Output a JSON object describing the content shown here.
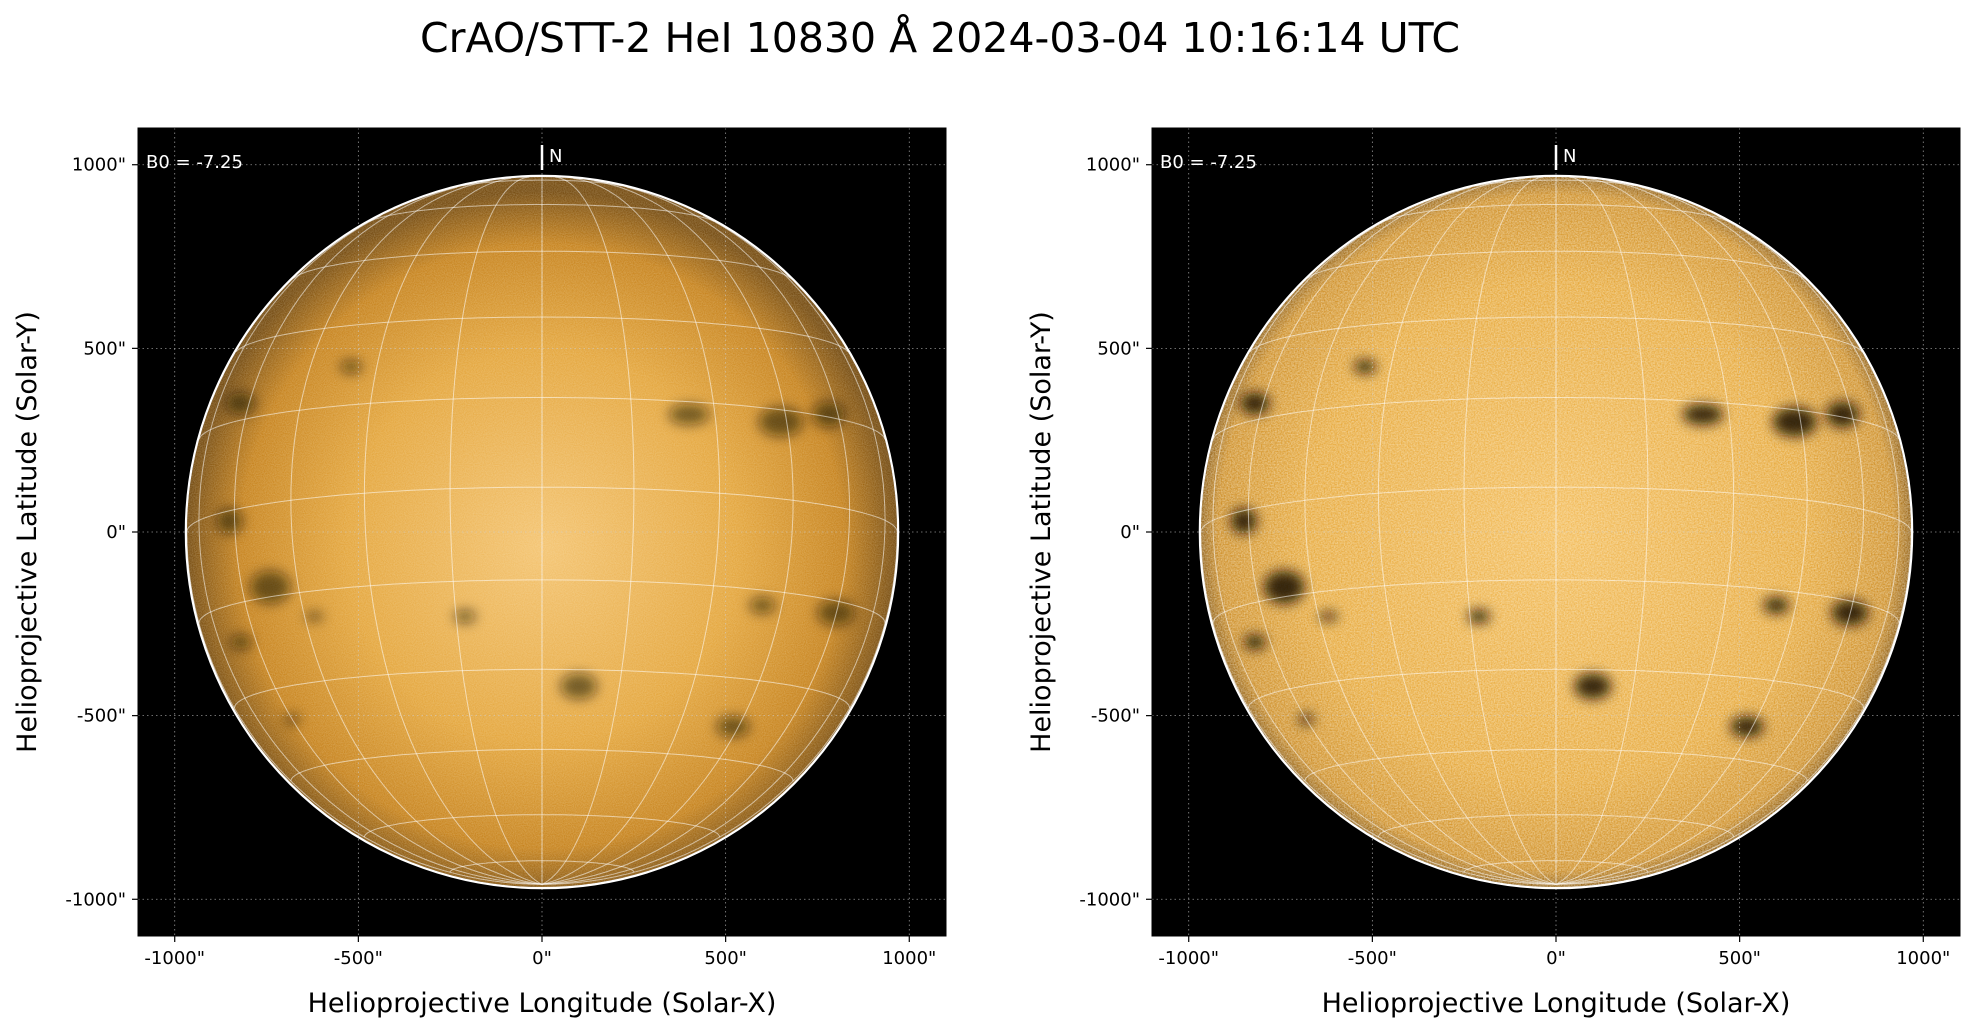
{
  "title": "CrAO/STT-2 HeI 10830 Å 2024-03-04 10:16:14 UTC",
  "colors": {
    "background": "#000000",
    "disk_center": "#f6c36a",
    "disk_mid": "#e0961a",
    "disk_limb": "#5a3500",
    "grid": "#ffffff",
    "filament": "#1a0d00"
  },
  "panels": [
    {
      "name": "left-panel",
      "variant": "smooth",
      "xlabel": "Helioprojective Longitude (Solar-X)",
      "ylabel": "Helioprojective Latitude (Solar-Y)",
      "x_ticks": [
        {
          "value": -1000,
          "label": "-1000\""
        },
        {
          "value": -500,
          "label": "-500\""
        },
        {
          "value": 0,
          "label": "0\""
        },
        {
          "value": 500,
          "label": "500\""
        },
        {
          "value": 1000,
          "label": "1000\""
        }
      ],
      "y_ticks": [
        {
          "value": 1000,
          "label": "1000\""
        },
        {
          "value": 500,
          "label": "500\""
        },
        {
          "value": 0,
          "label": "0\""
        },
        {
          "value": -500,
          "label": "-500\""
        },
        {
          "value": -1000,
          "label": "-1000\""
        }
      ],
      "b0_label": "B0 = -7.25",
      "north_label": "N"
    },
    {
      "name": "right-panel",
      "variant": "enhanced",
      "xlabel": "Helioprojective Longitude (Solar-X)",
      "ylabel": "Helioprojective Latitude (Solar-Y)",
      "x_ticks": [
        {
          "value": -1000,
          "label": "-1000\""
        },
        {
          "value": -500,
          "label": "-500\""
        },
        {
          "value": 0,
          "label": "0\""
        },
        {
          "value": 500,
          "label": "500\""
        },
        {
          "value": 1000,
          "label": "1000\""
        }
      ],
      "y_ticks": [
        {
          "value": 1000,
          "label": "1000\""
        },
        {
          "value": 500,
          "label": "500\""
        },
        {
          "value": 0,
          "label": "0\""
        },
        {
          "value": -500,
          "label": "-500\""
        },
        {
          "value": -1000,
          "label": "-1000\""
        }
      ],
      "b0_label": "B0 = -7.25",
      "north_label": "N"
    }
  ],
  "x_range": [
    -1100,
    1100
  ],
  "y_range": [
    -1100,
    1100
  ],
  "solar_radius": 967,
  "b0_deg": -7.25,
  "grid_spacing_deg": 15,
  "filaments": [
    {
      "x": -520,
      "y": 450,
      "rx": 30,
      "ry": 18
    },
    {
      "x": -820,
      "y": 350,
      "rx": 40,
      "ry": 30
    },
    {
      "x": 400,
      "y": 320,
      "rx": 55,
      "ry": 28
    },
    {
      "x": 650,
      "y": 300,
      "rx": 60,
      "ry": 40
    },
    {
      "x": 780,
      "y": 320,
      "rx": 45,
      "ry": 35
    },
    {
      "x": -850,
      "y": 30,
      "rx": 35,
      "ry": 35
    },
    {
      "x": -740,
      "y": -150,
      "rx": 55,
      "ry": 45
    },
    {
      "x": -820,
      "y": -300,
      "rx": 30,
      "ry": 20
    },
    {
      "x": -620,
      "y": -230,
      "rx": 25,
      "ry": 12
    },
    {
      "x": 800,
      "y": -220,
      "rx": 50,
      "ry": 35
    },
    {
      "x": 600,
      "y": -200,
      "rx": 35,
      "ry": 22
    },
    {
      "x": 100,
      "y": -420,
      "rx": 50,
      "ry": 35
    },
    {
      "x": 520,
      "y": -530,
      "rx": 45,
      "ry": 28
    },
    {
      "x": -680,
      "y": -510,
      "rx": 20,
      "ry": 14
    },
    {
      "x": -210,
      "y": -230,
      "rx": 30,
      "ry": 18
    }
  ]
}
